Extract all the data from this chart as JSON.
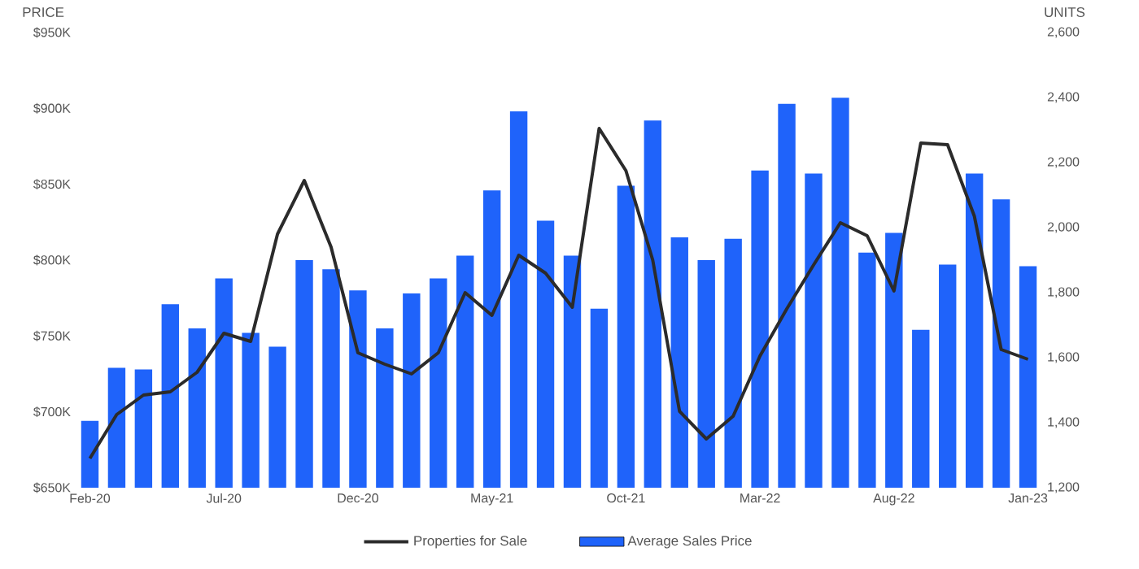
{
  "chart_data": {
    "type": "bar",
    "ylabel": "PRICE",
    "y2label": "UNITS",
    "categories": [
      "Feb-20",
      null,
      null,
      null,
      null,
      "Jul-20",
      null,
      null,
      null,
      null,
      "Dec-20",
      null,
      null,
      null,
      null,
      "May-21",
      null,
      null,
      null,
      null,
      "Oct-21",
      null,
      null,
      null,
      null,
      "Mar-22",
      null,
      null,
      null,
      null,
      "Aug-22",
      null,
      null,
      null,
      null,
      "Jan-23"
    ],
    "series": [
      {
        "name": "Properties for Sale",
        "type": "line",
        "axis": "y2",
        "color": "#2b2b2b",
        "values": [
          1290,
          1425,
          1485,
          1495,
          1555,
          1675,
          1650,
          1980,
          2145,
          1940,
          1615,
          1580,
          1550,
          1615,
          1800,
          1730,
          1915,
          1860,
          1755,
          2305,
          2175,
          1900,
          1435,
          1350,
          1420,
          1605,
          1750,
          1885,
          2015,
          1975,
          1805,
          2260,
          2255,
          2035,
          1625,
          1595
        ]
      },
      {
        "name": "Average Sales Price",
        "color": "#1f63fa",
        "values": [
          694,
          729,
          728,
          771,
          755,
          788,
          752,
          743,
          800,
          794,
          780,
          755,
          778,
          788,
          803,
          846,
          898,
          826,
          803,
          768,
          849,
          892,
          815,
          800,
          814,
          859,
          903,
          857,
          907,
          805,
          818,
          754,
          797,
          857,
          840,
          796
        ]
      }
    ],
    "ylim": [
      650,
      950
    ],
    "yticks": [
      {
        "value": 650,
        "label": "$650K"
      },
      {
        "value": 700,
        "label": "$700K"
      },
      {
        "value": 750,
        "label": "$750K"
      },
      {
        "value": 800,
        "label": "$800K"
      },
      {
        "value": 850,
        "label": "$850K"
      },
      {
        "value": 900,
        "label": "$900K"
      },
      {
        "value": 950,
        "label": "$950K"
      }
    ],
    "y2lim": [
      1200,
      2600
    ],
    "y2ticks": [
      {
        "value": 1200,
        "label": "1,200"
      },
      {
        "value": 1400,
        "label": "1,400"
      },
      {
        "value": 1600,
        "label": "1,600"
      },
      {
        "value": 1800,
        "label": "1,800"
      },
      {
        "value": 2000,
        "label": "2,000"
      },
      {
        "value": 2200,
        "label": "2,200"
      },
      {
        "value": 2400,
        "label": "2,400"
      },
      {
        "value": 2600,
        "label": "2,600"
      }
    ],
    "legend": "bottom"
  }
}
